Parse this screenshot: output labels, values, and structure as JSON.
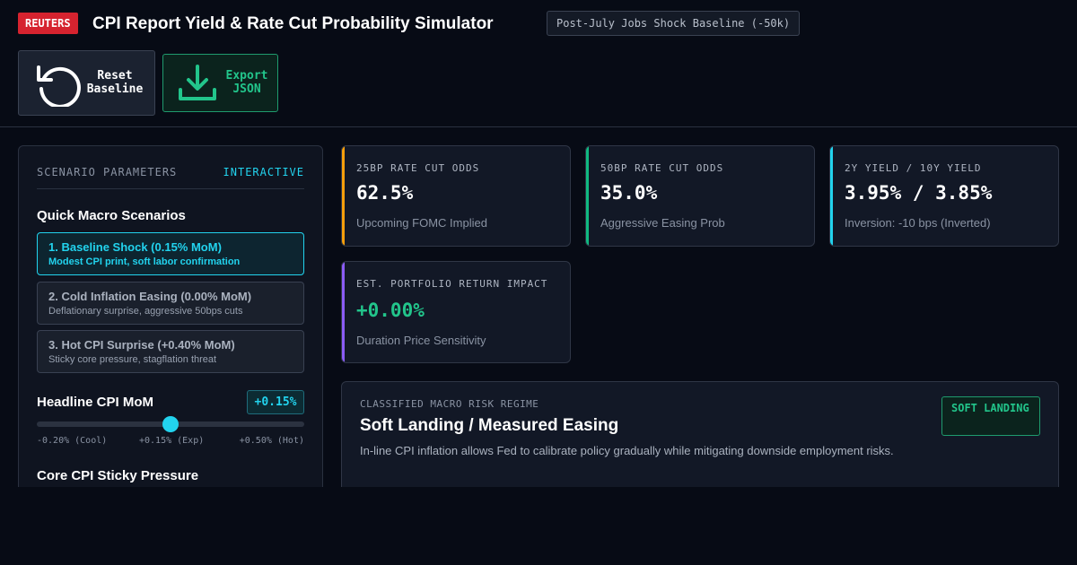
{
  "header": {
    "brand": "REUTERS",
    "title": "CPI Report Yield & Rate Cut Probability Simulator",
    "baseline_chip": "Post-July Jobs Shock Baseline (-50k)"
  },
  "toolbar": {
    "reset_label": "Reset Baseline",
    "export_label": "Export JSON"
  },
  "panel": {
    "title": "SCENARIO PARAMETERS",
    "mode": "INTERACTIVE",
    "quick_title": "Quick Macro Scenarios",
    "scenarios": [
      {
        "title": "1. Baseline Shock (0.15% MoM)",
        "desc": "Modest CPI print, soft labor confirmation",
        "active": true
      },
      {
        "title": "2. Cold Inflation Easing (0.00% MoM)",
        "desc": "Deflationary surprise, aggressive 50bps cuts",
        "active": false
      },
      {
        "title": "3. Hot CPI Surprise (+0.40% MoM)",
        "desc": "Sticky core pressure, stagflation threat",
        "active": false
      }
    ],
    "headline": {
      "label": "Headline CPI MoM",
      "value": "+0.15%",
      "slider_fraction": 0.5,
      "ticks": [
        "-0.20% (Cool)",
        "+0.15% (Exp)",
        "+0.50% (Hot)"
      ]
    },
    "core_label": "Core CPI Sticky Pressure"
  },
  "metrics": [
    {
      "key": "25BP RATE CUT ODDS",
      "value": "62.5%",
      "sub": "Upcoming FOMC Implied",
      "accent": "#f59e0b"
    },
    {
      "key": "50BP RATE CUT ODDS",
      "value": "35.0%",
      "sub": "Aggressive Easing Prob",
      "accent": "#10b981"
    },
    {
      "key": "2Y YIELD / 10Y YIELD",
      "value": "3.95% / 3.85%",
      "sub": "Inversion: -10 bps (Inverted)",
      "accent": "#22d3ee"
    },
    {
      "key": "EST. PORTFOLIO RETURN IMPACT",
      "value": "+0.00%",
      "sub": "Duration Price Sensitivity",
      "accent": "#8b5cf6",
      "value_color": "#22c58b"
    }
  ],
  "regime": {
    "kicker": "CLASSIFIED MACRO RISK REGIME",
    "heading": "Soft Landing / Measured Easing",
    "body": "In-line CPI inflation allows Fed to calibrate policy gradually while mitigating downside employment risks.",
    "badge": "SOFT LANDING"
  },
  "icons": {
    "reset": "rotate-ccw-icon",
    "export": "download-icon"
  }
}
